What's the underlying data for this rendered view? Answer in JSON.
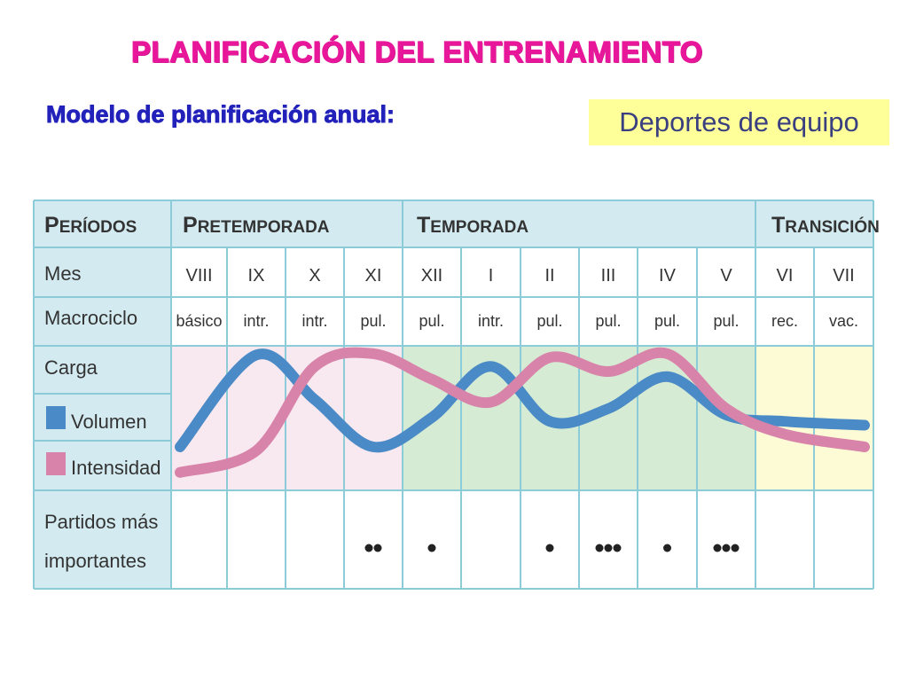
{
  "header": {
    "title": "PLANIFICACIÓN DEL ENTRENAMIENTO",
    "subtitle": "Modelo de planificación anual:",
    "tag": "Deportes de equipo"
  },
  "colors": {
    "title": "#e8179a",
    "subtitle": "#2222bb",
    "tag_bg": "#ffff99",
    "header_bg": "#d3ebf0",
    "grid": "#8ccbd8",
    "pretemporada_bg": "#f8e8f0",
    "temporada_bg": "#d6ebd4",
    "transicion_bg": "#fdfbd6",
    "volumen": "#4a8ac6",
    "intensidad": "#d883a9",
    "dots": "#222222"
  },
  "table": {
    "periods": {
      "label_first": "P",
      "label_rest": "ERÍODOS",
      "items": [
        {
          "first": "P",
          "rest": "RETEMPORADA"
        },
        {
          "first": "T",
          "rest": "EMPORADA"
        },
        {
          "first": "T",
          "rest": "RANSICIÓN"
        }
      ]
    },
    "rows": {
      "mes": "Mes",
      "macrociclo": "Macrociclo",
      "carga": "Carga",
      "volumen": "Volumen",
      "intensidad": "Intensidad",
      "partidos_1": "Partidos más",
      "partidos_2": "importantes"
    },
    "months": [
      "VIII",
      "IX",
      "X",
      "XI",
      "XII",
      "I",
      "II",
      "III",
      "IV",
      "V",
      "VI",
      "VII"
    ],
    "macrocycles": [
      "básico",
      "intr.",
      "intr.",
      "pul.",
      "pul.",
      "intr.",
      "pul.",
      "pul.",
      "pul.",
      "pul.",
      "rec.",
      "vac."
    ],
    "matches": [
      0,
      0,
      0,
      2,
      1,
      0,
      1,
      3,
      1,
      3,
      0,
      0
    ]
  },
  "chart_data": {
    "type": "line",
    "categories": [
      "VIII",
      "IX",
      "X",
      "XI",
      "XII",
      "I",
      "II",
      "III",
      "IV",
      "V",
      "VI",
      "VII"
    ],
    "series": [
      {
        "name": "Volumen",
        "values": [
          0.25,
          0.97,
          0.62,
          0.25,
          0.48,
          0.88,
          0.45,
          0.55,
          0.8,
          0.5,
          0.45,
          0.42
        ],
        "color": "#4a8ac6"
      },
      {
        "name": "Intensidad",
        "values": [
          0.05,
          0.22,
          0.88,
          0.98,
          0.78,
          0.6,
          0.95,
          0.84,
          0.98,
          0.55,
          0.35,
          0.25
        ],
        "color": "#d883a9"
      }
    ],
    "ylim": [
      0,
      1
    ],
    "grid": true
  }
}
